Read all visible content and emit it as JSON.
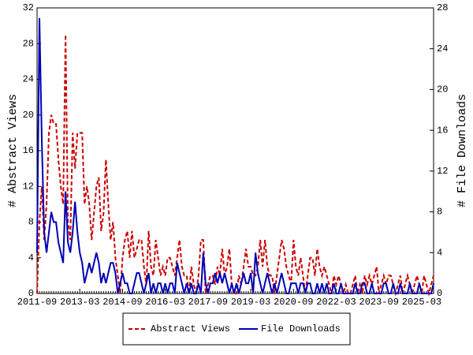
{
  "chart_data": {
    "type": "line",
    "ylabel": "# Abstract Views",
    "y2label": "# File Downloads",
    "categories": [
      "2011-09",
      null,
      null,
      null,
      null,
      null,
      null,
      null,
      null,
      null,
      null,
      null,
      null,
      null,
      null,
      null,
      null,
      null,
      "2013-03",
      null,
      null,
      null,
      null,
      null,
      null,
      null,
      null,
      null,
      null,
      null,
      null,
      null,
      null,
      null,
      null,
      null,
      "2014-09",
      null,
      null,
      null,
      null,
      null,
      null,
      null,
      null,
      null,
      null,
      null,
      null,
      null,
      null,
      null,
      null,
      null,
      "2016-03",
      null,
      null,
      null,
      null,
      null,
      null,
      null,
      null,
      null,
      null,
      null,
      null,
      null,
      null,
      null,
      null,
      null,
      "2017-09",
      null,
      null,
      null,
      null,
      null,
      null,
      null,
      null,
      null,
      null,
      null,
      null,
      null,
      null,
      null,
      null,
      null,
      "2019-03",
      null,
      null,
      null,
      null,
      null,
      null,
      null,
      null,
      null,
      null,
      null,
      null,
      null,
      null,
      null,
      null,
      null,
      "2020-09",
      null,
      null,
      null,
      null,
      null,
      null,
      null,
      null,
      null,
      null,
      null,
      null,
      null,
      null,
      null,
      null,
      null,
      "2022-03",
      null,
      null,
      null,
      null,
      null,
      null,
      null,
      null,
      null,
      null,
      null,
      null,
      null,
      null,
      null,
      null,
      null,
      "2023-09",
      null,
      null,
      null,
      null,
      null,
      null,
      null,
      null,
      null,
      null,
      null,
      null,
      null,
      null,
      null,
      null,
      null,
      "2025-03",
      null,
      null,
      null,
      null,
      null
    ],
    "series": [
      {
        "name": "Abstract Views",
        "color": "#cc0000",
        "dash": true,
        "axis": "y",
        "values": [
          0,
          8,
          12,
          6,
          10,
          18,
          20,
          19,
          19,
          15,
          12,
          10,
          29,
          8,
          6,
          18,
          14,
          18,
          18,
          18,
          10,
          12,
          10,
          6,
          9,
          12,
          13,
          7,
          9,
          15,
          10,
          6,
          8,
          4,
          2,
          0,
          4,
          6,
          7,
          4,
          7,
          4,
          5,
          6,
          6,
          3,
          1,
          7,
          3,
          2,
          6,
          4,
          2,
          3,
          2,
          4,
          4,
          3,
          2,
          4,
          6,
          3,
          2,
          2,
          0,
          3,
          1,
          0,
          2,
          6,
          6,
          0,
          1,
          2,
          2,
          1,
          3,
          2,
          5,
          2,
          3,
          5,
          1,
          0,
          0,
          2,
          1,
          3,
          5,
          3,
          3,
          2,
          2,
          3,
          6,
          3,
          6,
          3,
          2,
          2,
          0,
          2,
          4,
          6,
          5,
          3,
          2,
          1,
          6,
          3,
          2,
          4,
          2,
          0,
          2,
          4,
          4,
          2,
          5,
          3,
          2,
          3,
          2,
          1,
          0,
          2,
          1,
          2,
          1,
          0,
          1,
          0,
          0,
          1,
          2,
          0,
          1,
          0,
          2,
          1,
          2,
          1,
          2,
          3,
          0,
          1,
          2,
          1,
          2,
          2,
          1,
          0,
          1,
          2,
          0,
          1,
          2,
          1,
          0,
          1,
          2,
          1,
          0,
          2,
          1,
          0,
          1,
          2
        ]
      },
      {
        "name": "File Downloads",
        "color": "#0000b4",
        "dash": false,
        "axis": "y2",
        "values": [
          4,
          27,
          15,
          6,
          4,
          6,
          8,
          7,
          7,
          5,
          4,
          3,
          10,
          5,
          4,
          6,
          9,
          6,
          4,
          3,
          1,
          2,
          3,
          2,
          3,
          4,
          3,
          1,
          2,
          1,
          2,
          3,
          3,
          2,
          0,
          1,
          2,
          1,
          1,
          0,
          0,
          1,
          2,
          2,
          1,
          0,
          1,
          2,
          0,
          1,
          0,
          1,
          1,
          0,
          1,
          0,
          1,
          1,
          0,
          3,
          2,
          1,
          0,
          1,
          0,
          1,
          0,
          0,
          1,
          0,
          4,
          1,
          0,
          1,
          1,
          2,
          1,
          2,
          1,
          2,
          1,
          0,
          1,
          0,
          1,
          0,
          1,
          2,
          1,
          1,
          2,
          0,
          4,
          2,
          1,
          0,
          1,
          2,
          1,
          0,
          1,
          0,
          1,
          2,
          1,
          0,
          0,
          1,
          1,
          1,
          0,
          1,
          1,
          0,
          1,
          1,
          0,
          0,
          1,
          0,
          1,
          0,
          1,
          0,
          0,
          1,
          0,
          0,
          1,
          0,
          0,
          0,
          0,
          0,
          1,
          0,
          0,
          1,
          1,
          0,
          0,
          1,
          0,
          0,
          0,
          0,
          1,
          1,
          0,
          0,
          1,
          0,
          0,
          1,
          0,
          0,
          0,
          1,
          0,
          0,
          0,
          1,
          0,
          0,
          0,
          0,
          0,
          1
        ]
      }
    ],
    "ylim": [
      0,
      32
    ],
    "yticks": [
      0,
      4,
      8,
      12,
      16,
      20,
      24,
      28,
      32
    ],
    "y2lim": [
      0,
      28
    ],
    "y2ticks": [
      0,
      4,
      8,
      12,
      16,
      20,
      24,
      28
    ],
    "legend": "bottom"
  }
}
